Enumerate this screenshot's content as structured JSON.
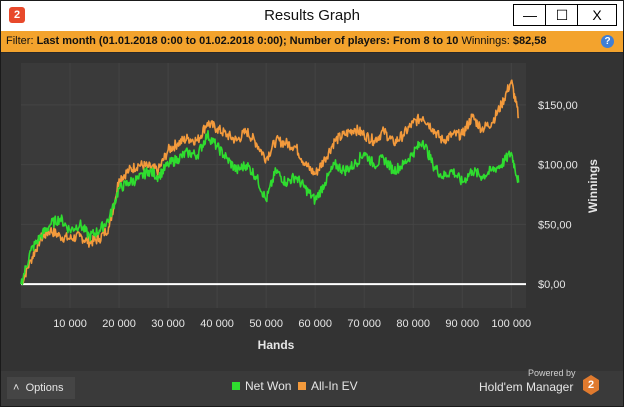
{
  "app_badge": "2",
  "window": {
    "title": "Results Graph",
    "minimize_label": "—",
    "maximize_label": "☐",
    "close_label": "X"
  },
  "filter": {
    "prefix": "Filter: ",
    "text": "Last month (01.01.2018 0:00 to 01.02.2018 0:00); Number of players: From 8 to 10",
    "winnings_label": "Winnings: ",
    "winnings_value": "$82,58",
    "help_glyph": "?"
  },
  "colors": {
    "net_won": "#2fdc2f",
    "all_in_ev": "#f39a3c",
    "zero_line": "#ffffff"
  },
  "chart_data": {
    "type": "line",
    "xlabel": "Hands",
    "ylabel": "Winnings",
    "x_ticks": [
      "10 000",
      "20 000",
      "30 000",
      "40 000",
      "50 000",
      "60 000",
      "70 000",
      "80 000",
      "90 000",
      "100 000"
    ],
    "x_tick_values": [
      10000,
      20000,
      30000,
      40000,
      50000,
      60000,
      70000,
      80000,
      90000,
      100000
    ],
    "y_ticks": [
      "$0,00",
      "$50,00",
      "$100,00",
      "$150,00"
    ],
    "y_tick_values": [
      0,
      50,
      100,
      150
    ],
    "xlim": [
      0,
      103000
    ],
    "ylim": [
      -20,
      185
    ],
    "x": [
      0,
      2000,
      4000,
      6000,
      8000,
      10000,
      12000,
      14000,
      16000,
      18000,
      20000,
      22000,
      24000,
      26000,
      28000,
      30000,
      32000,
      34000,
      36000,
      38000,
      40000,
      42000,
      44000,
      46000,
      48000,
      50000,
      52000,
      54000,
      56000,
      58000,
      60000,
      62000,
      64000,
      66000,
      68000,
      70000,
      72000,
      74000,
      76000,
      78000,
      80000,
      82000,
      84000,
      86000,
      88000,
      90000,
      92000,
      94000,
      96000,
      98000,
      100000,
      101500
    ],
    "series": [
      {
        "name": "Net Won",
        "values": [
          0,
          28,
          40,
          50,
          55,
          45,
          50,
          40,
          45,
          55,
          80,
          85,
          88,
          95,
          90,
          100,
          105,
          110,
          108,
          125,
          115,
          105,
          95,
          100,
          90,
          70,
          95,
          85,
          90,
          80,
          70,
          85,
          100,
          95,
          100,
          110,
          100,
          105,
          95,
          100,
          110,
          120,
          100,
          90,
          95,
          85,
          95,
          90,
          95,
          100,
          110,
          85
        ]
      },
      {
        "name": "All-In EV",
        "values": [
          0,
          20,
          38,
          45,
          40,
          38,
          40,
          35,
          38,
          48,
          88,
          95,
          100,
          98,
          95,
          112,
          118,
          122,
          120,
          135,
          130,
          125,
          120,
          128,
          118,
          105,
          120,
          118,
          115,
          100,
          92,
          105,
          120,
          125,
          130,
          125,
          120,
          128,
          118,
          125,
          135,
          140,
          130,
          120,
          125,
          125,
          140,
          130,
          135,
          150,
          170,
          140
        ]
      }
    ],
    "grid": true,
    "legend": "bottom-center"
  },
  "legend": {
    "net_won_label": "Net Won",
    "all_in_ev_label": "All-In EV"
  },
  "options_label": "Options",
  "options_glyph": "˄",
  "powered_by": "Powered by",
  "brand": "Hold'em Manager",
  "brand_badge": "2"
}
